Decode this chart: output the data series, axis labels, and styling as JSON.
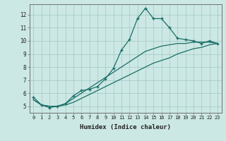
{
  "xlabel": "Humidex (Indice chaleur)",
  "bg_color": "#cce8e4",
  "grid_color": "#a0c8c4",
  "line_color": "#1a6e68",
  "x_labels": [
    "0",
    "1",
    "2",
    "3",
    "4",
    "5",
    "6",
    "7",
    "8",
    "9",
    "10",
    "11",
    "12",
    "13",
    "14",
    "15",
    "16",
    "17",
    "18",
    "19",
    "20",
    "21",
    "22",
    "23"
  ],
  "yticks": [
    5,
    6,
    7,
    8,
    9,
    10,
    11,
    12
  ],
  "hours": [
    0,
    1,
    2,
    3,
    4,
    5,
    6,
    7,
    8,
    9,
    10,
    11,
    12,
    13,
    14,
    15,
    16,
    17,
    18,
    19,
    20,
    21,
    22,
    23
  ],
  "line_main": [
    5.7,
    5.1,
    4.9,
    5.0,
    5.2,
    5.8,
    6.2,
    6.3,
    6.5,
    7.1,
    7.9,
    9.3,
    10.1,
    11.7,
    12.5,
    11.7,
    11.7,
    11.0,
    10.2,
    10.1,
    10.0,
    9.8,
    10.0,
    9.8
  ],
  "line_low": [
    5.5,
    5.1,
    5.0,
    5.0,
    5.1,
    5.3,
    5.6,
    5.9,
    6.2,
    6.5,
    6.8,
    7.1,
    7.4,
    7.7,
    8.0,
    8.3,
    8.5,
    8.7,
    9.0,
    9.2,
    9.4,
    9.5,
    9.7,
    9.8
  ],
  "line_high": [
    5.5,
    5.1,
    5.0,
    5.0,
    5.2,
    5.6,
    6.0,
    6.4,
    6.8,
    7.2,
    7.6,
    8.0,
    8.4,
    8.8,
    9.2,
    9.4,
    9.6,
    9.7,
    9.8,
    9.8,
    9.9,
    9.9,
    9.9,
    9.8
  ],
  "xlim": [
    -0.5,
    23.5
  ],
  "ylim": [
    4.5,
    12.8
  ]
}
